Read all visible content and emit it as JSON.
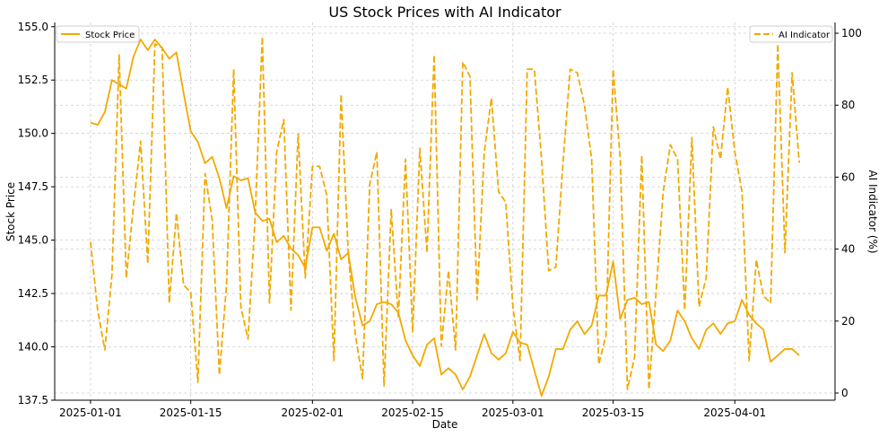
{
  "chart_data": {
    "type": "line",
    "title": "US Stock Prices with AI Indicator",
    "xlabel": "Date",
    "ylabel_left": "Stock Price",
    "ylabel_right": "AI Indicator (%)",
    "grid": true,
    "grid_style": "dashed",
    "x_start": "2025-01-01",
    "x_end": "2025-04-10",
    "xlim": [
      "2024-12-27",
      "2025-04-15"
    ],
    "x_ticks": [
      "2025-01-01",
      "2025-01-15",
      "2025-02-01",
      "2025-02-15",
      "2025-03-01",
      "2025-03-15",
      "2025-04-01"
    ],
    "ylim_left": [
      137.5,
      155.2
    ],
    "y_ticks_left": [
      "137.5",
      "140.0",
      "142.5",
      "145.0",
      "147.5",
      "150.0",
      "152.5",
      "155.0"
    ],
    "ylim_right": [
      -2,
      103
    ],
    "y_ticks_right": [
      "0",
      "20",
      "40",
      "60",
      "80",
      "100"
    ],
    "series": [
      {
        "name": "Stock Price",
        "axis": "left",
        "color": "#f2a900",
        "style": "solid",
        "legend_position": "top-left",
        "values": [
          150.5,
          150.4,
          151.0,
          152.5,
          152.3,
          152.1,
          153.6,
          154.4,
          153.9,
          154.4,
          154.0,
          153.5,
          153.8,
          151.9,
          150.1,
          149.6,
          148.6,
          148.9,
          147.9,
          146.5,
          148.0,
          147.8,
          147.9,
          146.3,
          145.9,
          146.0,
          144.9,
          145.2,
          144.6,
          144.3,
          143.7,
          145.6,
          145.6,
          144.5,
          145.3,
          144.1,
          144.4,
          142.3,
          141.0,
          141.2,
          142.0,
          142.1,
          142.0,
          141.6,
          140.3,
          139.6,
          139.1,
          140.1,
          140.4,
          138.7,
          139.0,
          138.7,
          138.0,
          138.6,
          139.6,
          140.6,
          139.7,
          139.4,
          139.7,
          140.7,
          140.2,
          140.1,
          138.9,
          137.7,
          138.6,
          139.9,
          139.9,
          140.8,
          141.2,
          140.6,
          141.0,
          142.4,
          142.4,
          144.0,
          141.3,
          142.2,
          142.3,
          142.0,
          142.1,
          140.1,
          139.8,
          140.3,
          141.7,
          141.2,
          140.4,
          139.9,
          140.8,
          141.1,
          140.6,
          141.1,
          141.2,
          142.2,
          141.5,
          141.1,
          140.8,
          139.3,
          139.6,
          139.9,
          139.9,
          139.6
        ]
      },
      {
        "name": "AI Indicator",
        "axis": "right",
        "color": "#f2a900",
        "style": "dashed",
        "legend_position": "top-right",
        "values": [
          42,
          23,
          12,
          33,
          94,
          32,
          52,
          70,
          36,
          97,
          96,
          25,
          50,
          30,
          28,
          3,
          61,
          48,
          5,
          30,
          90,
          24,
          15,
          49,
          99,
          25,
          67,
          76,
          23,
          72,
          32,
          63,
          63,
          55,
          9,
          83,
          39,
          16,
          4,
          58,
          67,
          2,
          51,
          21,
          65,
          17,
          68,
          39,
          94,
          13,
          34,
          12,
          92,
          88,
          26,
          67,
          82,
          56,
          53,
          24,
          9,
          90,
          90,
          65,
          34,
          35,
          64,
          90,
          89,
          80,
          65,
          8,
          16,
          90,
          65,
          1,
          10,
          66,
          1,
          28,
          56,
          69,
          65,
          23,
          71,
          24,
          32,
          74,
          65,
          85,
          67,
          56,
          9,
          37,
          27,
          25,
          97,
          39,
          89,
          64
        ]
      }
    ]
  }
}
